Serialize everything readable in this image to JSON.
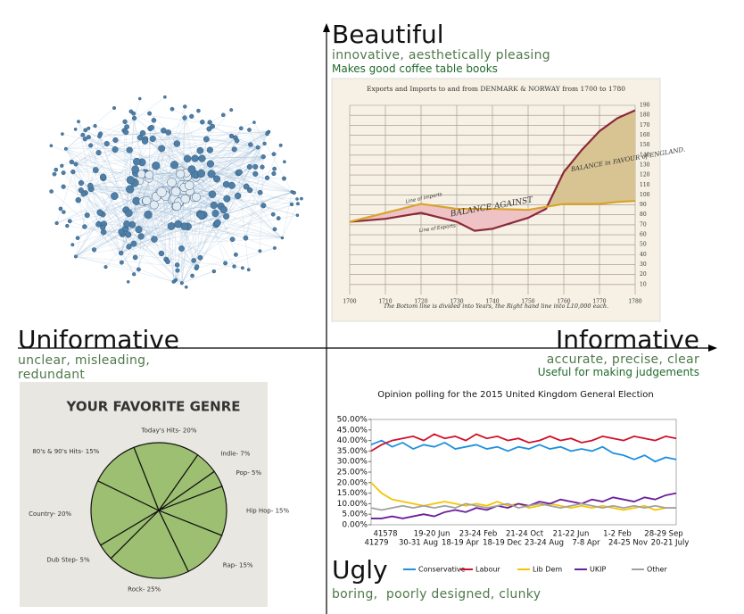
{
  "quadrant_labels": {
    "top": {
      "title": "Beautiful",
      "subtitle": "innovative, aesthetically pleasing",
      "note": "Makes good coffee table books"
    },
    "left": {
      "title": "Uniformative",
      "subtitle": "unclear, misleading, redundant"
    },
    "right": {
      "title": "Informative",
      "subtitle": "accurate, precise, clear",
      "note": "Useful for making judgements"
    },
    "bottom": {
      "title": "Ugly",
      "subtitle": "boring,  poorly designed, clunky"
    }
  },
  "playfair": {
    "type": "line",
    "title": "Exports and Imports to and from DENMARK & NORWAY from 1700 to 1780",
    "x": [
      1700,
      1710,
      1720,
      1730,
      1735,
      1740,
      1750,
      1755,
      1760,
      1765,
      1770,
      1775,
      1780
    ],
    "series": [
      {
        "name": "Line of Exports",
        "color": "#8b2a3a",
        "values": [
          73,
          76,
          82,
          73,
          64,
          66,
          77,
          86,
          123,
          145,
          164,
          177,
          185
        ]
      },
      {
        "name": "Line of Imports",
        "color": "#d9a32c",
        "values": [
          73,
          82,
          91,
          86,
          86,
          86,
          85,
          88,
          91,
          91,
          91,
          93,
          94
        ]
      }
    ],
    "xlim": [
      1700,
      1780
    ],
    "ylim": [
      0,
      190
    ],
    "xticks": [
      1700,
      1710,
      1720,
      1730,
      1740,
      1750,
      1760,
      1770,
      1780
    ],
    "yticks": [
      10,
      20,
      30,
      40,
      50,
      60,
      70,
      80,
      90,
      100,
      110,
      120,
      130,
      140,
      150,
      160,
      170,
      180,
      190
    ],
    "annotations": [
      "BALANCE AGAINST",
      "BALANCE in FAVOUR of ENGLAND."
    ],
    "footnote": "The Bottom line is divided into Years, the Right hand line into L10,000 each."
  },
  "pie": {
    "type": "pie",
    "title": "YOUR FAVORITE GENRE",
    "categories": [
      "Today's Hits",
      "Indie",
      "Pop",
      "Hip Hop",
      "Rap",
      "Rock",
      "Dub Step",
      "Country",
      "80's & 90's Hits"
    ],
    "values": [
      20,
      7,
      5,
      15,
      15,
      25,
      5,
      20,
      15
    ],
    "value_labels": [
      "Today's Hits- 20%",
      "Indie- 7%",
      "Pop- 5%",
      "Hip Hop- 15%",
      "Rap- 15%",
      "Rock- 25%",
      "Dub Step- 5%",
      "Country- 20%",
      "80's & 90's Hits- 15%"
    ],
    "color": "#9dbf72"
  },
  "polling": {
    "type": "line",
    "title": "Opinion polling for the 2015 United Kingdom General Election",
    "x_labels_top": [
      "41578",
      "19-20 Jun",
      "23-24 Feb",
      "21-24 Oct",
      "21-22 Jun",
      "1-2 Feb",
      "28-29 Sep"
    ],
    "x_labels_bottom": [
      "41279",
      "30-31 Aug",
      "18-19 Apr",
      "18-19 Dec",
      "23-24 Aug",
      "7-8 Apr",
      "24-25 Nov",
      "20-21 July"
    ],
    "ylim": [
      0,
      50
    ],
    "yticks": [
      {
        "value": 0,
        "label": "0.00%"
      },
      {
        "value": 5,
        "label": "5.00%"
      },
      {
        "value": 10,
        "label": "10.00%"
      },
      {
        "value": 15,
        "label": "15.00%"
      },
      {
        "value": 20,
        "label": "20.00%"
      },
      {
        "value": 25,
        "label": "25.00%"
      },
      {
        "value": 30,
        "label": "30.00%"
      },
      {
        "value": 35,
        "label": "35.00%"
      },
      {
        "value": 40,
        "label": "40.00%"
      },
      {
        "value": 45,
        "label": "45.00%"
      },
      {
        "value": 50,
        "label": "50.00%"
      }
    ],
    "series": [
      {
        "name": "Conservative",
        "color": "#1e90e0",
        "values": [
          38,
          40,
          37,
          39,
          36,
          38,
          37,
          39,
          36,
          37,
          38,
          36,
          37,
          35,
          37,
          36,
          38,
          36,
          37,
          35,
          36,
          35,
          37,
          34,
          33,
          31,
          33,
          30,
          32,
          31
        ]
      },
      {
        "name": "Labour",
        "color": "#d0102a",
        "values": [
          35,
          38,
          40,
          41,
          42,
          40,
          43,
          41,
          42,
          40,
          43,
          41,
          42,
          40,
          41,
          39,
          40,
          42,
          40,
          41,
          39,
          40,
          42,
          41,
          40,
          42,
          41,
          40,
          42,
          41
        ]
      },
      {
        "name": "Lib Dem",
        "color": "#f5c400",
        "values": [
          20,
          15,
          12,
          11,
          10,
          9,
          10,
          11,
          10,
          9,
          10,
          9,
          11,
          9,
          10,
          8,
          9,
          10,
          9,
          8,
          9,
          8,
          9,
          8,
          7,
          8,
          9,
          7,
          8,
          8
        ]
      },
      {
        "name": "UKIP",
        "color": "#6a1f9a",
        "values": [
          3,
          3,
          4,
          3,
          4,
          5,
          4,
          6,
          7,
          6,
          8,
          7,
          9,
          8,
          10,
          9,
          11,
          10,
          12,
          11,
          10,
          12,
          11,
          13,
          12,
          11,
          13,
          12,
          14,
          15
        ]
      },
      {
        "name": "Other",
        "color": "#a0a0a0",
        "values": [
          8,
          7,
          8,
          9,
          8,
          9,
          8,
          9,
          8,
          10,
          9,
          8,
          9,
          10,
          8,
          9,
          10,
          9,
          8,
          9,
          10,
          9,
          8,
          9,
          8,
          9,
          8,
          9,
          8,
          8
        ]
      }
    ]
  }
}
